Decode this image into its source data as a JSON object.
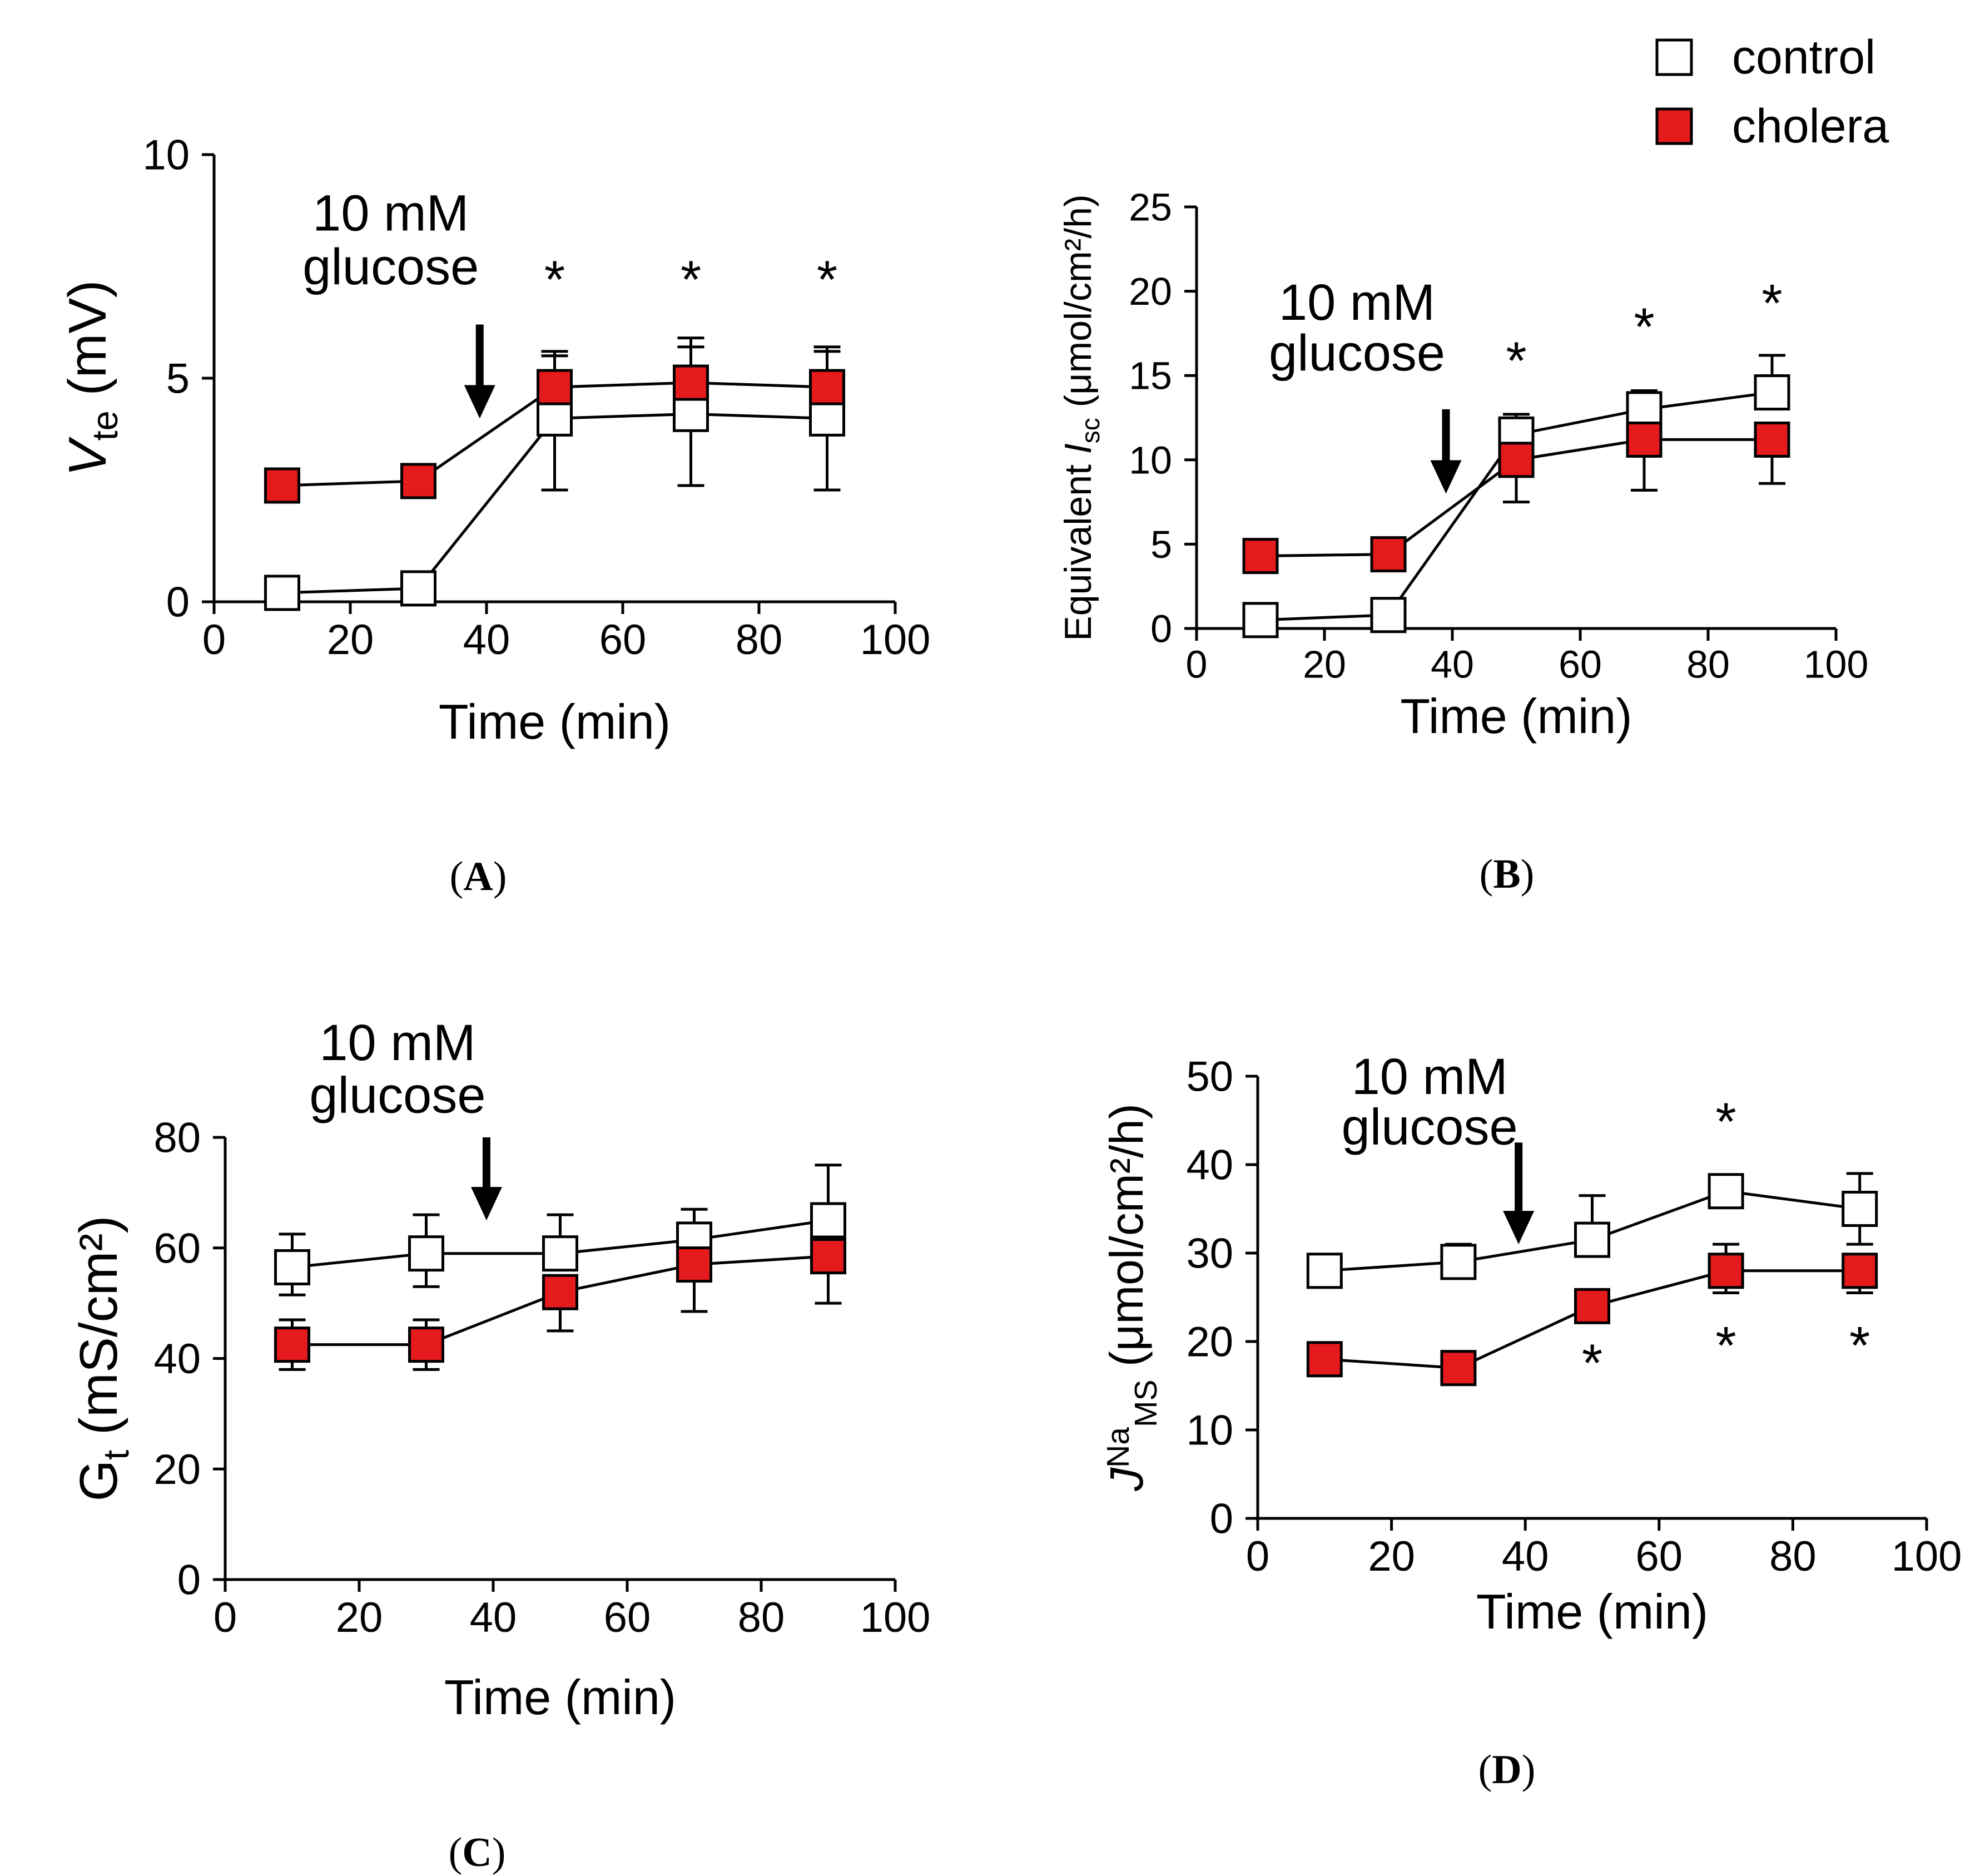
{
  "legend": {
    "entries": [
      {
        "name": "control",
        "fill": "#ffffff"
      },
      {
        "name": "cholera",
        "fill": "#e41a1c"
      }
    ]
  },
  "colors": {
    "control": "#ffffff",
    "cholera": "#e41a1c",
    "stroke": "#000000"
  },
  "annotation": {
    "line1": "10 mM",
    "line2": "glucose",
    "arrow_x": 39
  },
  "chart_data": [
    {
      "id": "A",
      "type": "line",
      "panel_label": "A",
      "ylabel": {
        "main": "V",
        "sub": "te",
        "tail": " (mV)",
        "italic_main": true
      },
      "xlabel": "Time (min)",
      "xlim": [
        0,
        100
      ],
      "ylim": [
        0,
        10
      ],
      "xticks": [
        0,
        20,
        40,
        60,
        80,
        100
      ],
      "yticks": [
        0,
        5,
        10
      ],
      "x": [
        10,
        30,
        50,
        70,
        90
      ],
      "series": [
        {
          "name": "control",
          "values": [
            0.2,
            0.3,
            4.1,
            4.2,
            4.1
          ],
          "err_up": [
            0,
            0,
            1.4,
            1.5,
            1.5
          ],
          "err_down": [
            0,
            0,
            1.6,
            1.6,
            1.6
          ]
        },
        {
          "name": "cholera",
          "values": [
            2.6,
            2.7,
            4.8,
            4.9,
            4.8
          ],
          "err_up": [
            0,
            0,
            0.8,
            1.0,
            0.9
          ],
          "err_down": [
            0,
            0,
            0,
            0,
            0
          ]
        }
      ],
      "stars": [
        {
          "x": 50,
          "y": 6.8,
          "label": "*"
        },
        {
          "x": 70,
          "y": 6.8,
          "label": "*"
        },
        {
          "x": 90,
          "y": 6.8,
          "label": "*"
        }
      ],
      "arrow_top": 6.2,
      "arrow_bottom": 4.1,
      "ann_line1_y": 8.3,
      "ann_line2_y": 7.1
    },
    {
      "id": "B",
      "type": "line",
      "panel_label": "B",
      "ylabel": {
        "pre": "Equivalent ",
        "main": "I",
        "sub": "sc",
        "tail": " (μmol/cm²/h)",
        "italic_main": true
      },
      "xlabel": "Time (min)",
      "xlim": [
        0,
        100
      ],
      "ylim": [
        0,
        25
      ],
      "xticks": [
        0,
        20,
        40,
        60,
        80,
        100
      ],
      "yticks": [
        0,
        5,
        10,
        15,
        20,
        25
      ],
      "x": [
        10,
        30,
        50,
        70,
        90
      ],
      "series": [
        {
          "name": "control",
          "values": [
            0.5,
            0.8,
            11.5,
            13.0,
            14.0
          ],
          "err_up": [
            0,
            0,
            1.2,
            1.1,
            2.2
          ],
          "err_down": [
            0,
            0,
            0,
            0,
            0
          ]
        },
        {
          "name": "cholera",
          "values": [
            4.3,
            4.4,
            10.0,
            11.2,
            11.2
          ],
          "err_up": [
            0,
            0,
            0,
            0,
            0
          ],
          "err_down": [
            0,
            0,
            2.5,
            3.0,
            2.6
          ]
        }
      ],
      "stars": [
        {
          "x": 50,
          "y": 14.8,
          "label": "*"
        },
        {
          "x": 70,
          "y": 16.8,
          "label": "*"
        },
        {
          "x": 90,
          "y": 18.2,
          "label": "*"
        }
      ],
      "arrow_top": 13.0,
      "arrow_bottom": 8.0,
      "ann_line1_y": 18.3,
      "ann_line2_y": 15.3
    },
    {
      "id": "C",
      "type": "line",
      "panel_label": "C",
      "ylabel": {
        "main": "G",
        "sub": "t",
        "tail": " (mS/cm²)",
        "italic_main": false
      },
      "xlabel": "Time (min)",
      "xlim": [
        0,
        100
      ],
      "ylim": [
        0,
        80
      ],
      "xticks": [
        0,
        20,
        40,
        60,
        80,
        100
      ],
      "yticks": [
        0,
        20,
        40,
        60,
        80
      ],
      "x": [
        10,
        30,
        50,
        70,
        90
      ],
      "series": [
        {
          "name": "control",
          "values": [
            56.5,
            59.0,
            59.0,
            61.5,
            65.0
          ],
          "err_up": [
            6.0,
            7.0,
            7.0,
            5.5,
            10.0
          ],
          "err_down": [
            5.0,
            6.0,
            0,
            0,
            0
          ]
        },
        {
          "name": "cholera",
          "values": [
            42.5,
            42.5,
            52.0,
            57.0,
            58.5
          ],
          "err_up": [
            4.5,
            4.5,
            0,
            0,
            0
          ],
          "err_down": [
            4.5,
            4.5,
            7.0,
            8.5,
            8.5
          ]
        }
      ],
      "stars": [],
      "arrow_top": 80.0,
      "arrow_bottom": 65.0,
      "ann_line1_y": 94.0,
      "ann_line2_y": 84.5
    },
    {
      "id": "D",
      "type": "line",
      "panel_label": "D",
      "ylabel": {
        "main": "J",
        "sup": "Na",
        "sub": "MS",
        "tail": " (μmol/cm²/h)",
        "italic_main": true
      },
      "xlabel": "Time (min)",
      "xlim": [
        0,
        100
      ],
      "ylim": [
        0,
        50
      ],
      "xticks": [
        0,
        20,
        40,
        60,
        80,
        100
      ],
      "yticks": [
        0,
        10,
        20,
        30,
        40,
        50
      ],
      "x": [
        10,
        30,
        50,
        70,
        90
      ],
      "series": [
        {
          "name": "control",
          "values": [
            28.0,
            29.0,
            31.5,
            37.0,
            35.0
          ],
          "err_up": [
            0,
            2.0,
            5.0,
            0,
            4.0
          ],
          "err_down": [
            0,
            0,
            0,
            0,
            4.0
          ]
        },
        {
          "name": "cholera",
          "values": [
            18.0,
            17.0,
            24.0,
            28.0,
            28.0
          ],
          "err_up": [
            0,
            0,
            0,
            3.0,
            0
          ],
          "err_down": [
            0,
            0,
            0,
            2.5,
            2.5
          ]
        }
      ],
      "stars": [
        {
          "x": 70,
          "y": 42.8,
          "label": "*"
        },
        {
          "x": 50,
          "y": 15.5,
          "label": "*"
        },
        {
          "x": 70,
          "y": 17.5,
          "label": "*"
        },
        {
          "x": 90,
          "y": 17.5,
          "label": "*"
        }
      ],
      "arrow_top": 42.5,
      "arrow_bottom": 31.0,
      "ann_line1_y": 48.0,
      "ann_line2_y": 42.3
    }
  ]
}
